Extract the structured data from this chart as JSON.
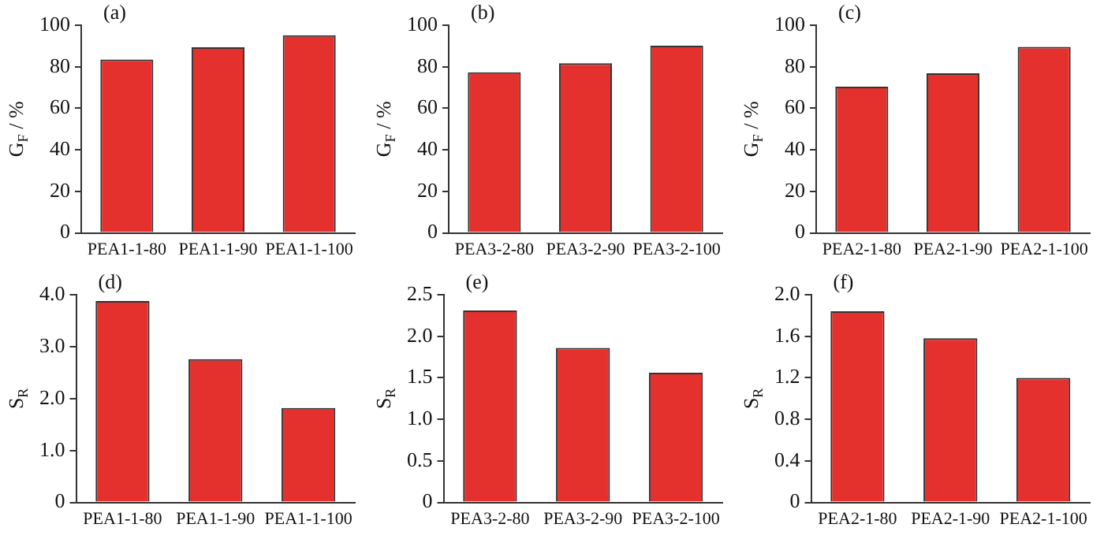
{
  "chart_data": [
    {
      "type": "bar",
      "ylabel": "G$_{F}$ / %",
      "annotations": [
        "(a)"
      ],
      "categories": [
        "PEA1-1-80",
        "PEA1-1-90",
        "PEA1-1-100"
      ],
      "values": [
        83.5,
        89.4,
        95.2
      ],
      "color": "#e5312d",
      "ylim": [
        0,
        100
      ],
      "yticks": [
        0,
        20,
        40,
        60,
        80,
        100
      ],
      "grid": false
    },
    {
      "type": "bar",
      "ylabel": "G$_{F}$ / %",
      "annotations": [
        "(b)"
      ],
      "categories": [
        "PEA3-2-80",
        "PEA3-2-90",
        "PEA3-2-100"
      ],
      "values": [
        77.3,
        81.7,
        90.1
      ],
      "color": "#e5312d",
      "ylim": [
        0,
        100
      ],
      "yticks": [
        0,
        20,
        40,
        60,
        80,
        100
      ],
      "grid": false
    },
    {
      "type": "bar",
      "ylabel": "G$_{F}$ / %",
      "annotations": [
        "(c)"
      ],
      "categories": [
        "PEA2-1-80",
        "PEA2-1-90",
        "PEA2-1-100"
      ],
      "values": [
        70.4,
        76.9,
        89.6
      ],
      "color": "#e5312d",
      "ylim": [
        0,
        100
      ],
      "yticks": [
        0,
        20,
        40,
        60,
        80,
        100
      ],
      "grid": false
    },
    {
      "type": "bar",
      "ylabel": "S$_{R}$",
      "annotations": [
        "(d)"
      ],
      "categories": [
        "PEA1-1-80",
        "PEA1-1-90",
        "PEA1-1-100"
      ],
      "values": [
        3.88,
        2.76,
        1.82
      ],
      "color": "#e5312d",
      "ylim": [
        0,
        4
      ],
      "yticks": [
        0,
        {
          "value": 1,
          "label": "1.0"
        },
        {
          "value": 2,
          "label": "2.0"
        },
        {
          "value": 3,
          "label": "3.0"
        },
        {
          "value": 4,
          "label": "4.0"
        }
      ],
      "grid": false
    },
    {
      "type": "bar",
      "ylabel": "S$_{R}$",
      "annotations": [
        "(e)"
      ],
      "categories": [
        "PEA3-2-80",
        "PEA3-2-90",
        "PEA3-2-100"
      ],
      "values": [
        2.31,
        1.86,
        1.56
      ],
      "color": "#e5312d",
      "ylim": [
        0,
        2.5
      ],
      "yticks": [
        0,
        0.5,
        {
          "value": 1,
          "label": "1.0"
        },
        1.5,
        {
          "value": 2,
          "label": "2.0"
        },
        2.5
      ],
      "grid": false
    },
    {
      "type": "bar",
      "ylabel": "S$_{R}$",
      "annotations": [
        "(f)"
      ],
      "categories": [
        "PEA2-1-80",
        "PEA2-1-90",
        "PEA2-1-100"
      ],
      "values": [
        1.84,
        1.58,
        1.2
      ],
      "color": "#e5312d",
      "ylim": [
        0,
        2
      ],
      "yticks": [
        0,
        0.4,
        0.8,
        1.2,
        1.6,
        {
          "value": 2,
          "label": "2.0"
        }
      ],
      "grid": false
    }
  ]
}
